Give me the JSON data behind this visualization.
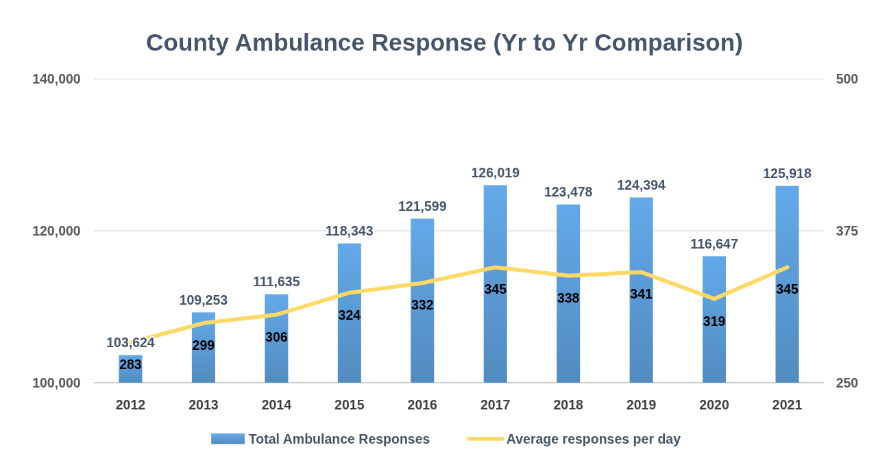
{
  "chart_data": {
    "type": "bar",
    "title": "County Ambulance Response (Yr to Yr Comparison)",
    "categories": [
      "2012",
      "2013",
      "2014",
      "2015",
      "2016",
      "2017",
      "2018",
      "2019",
      "2020",
      "2021"
    ],
    "series": [
      {
        "name": "Total Ambulance Responses",
        "color": "#5b9bd5",
        "values": [
          103624,
          109253,
          111635,
          118343,
          121599,
          126019,
          123478,
          124394,
          116647,
          125918
        ],
        "value_labels": [
          "103,624",
          "109,253",
          "111,635",
          "118,343",
          "121,599",
          "126,019",
          "123,478",
          "124,394",
          "116,647",
          "125,918"
        ]
      },
      {
        "name": "Average responses per day",
        "type": "line",
        "axis": "y2",
        "color": "#ffd966",
        "values": [
          283,
          299,
          306,
          324,
          332,
          345,
          338,
          341,
          319,
          345
        ],
        "value_labels": [
          "283",
          "299",
          "306",
          "324",
          "332",
          "345",
          "338",
          "341",
          "319",
          "345"
        ]
      }
    ],
    "ylim": [
      100000,
      140000
    ],
    "yticks": [
      {
        "value": 100000,
        "label": "100,000"
      },
      {
        "value": 120000,
        "label": "120,000"
      },
      {
        "value": 140000,
        "label": "140,000"
      }
    ],
    "y2lim": [
      250,
      500
    ],
    "y2ticks": [
      250,
      375,
      500
    ],
    "grid": "y",
    "legend": "bottom",
    "marker": "none"
  }
}
